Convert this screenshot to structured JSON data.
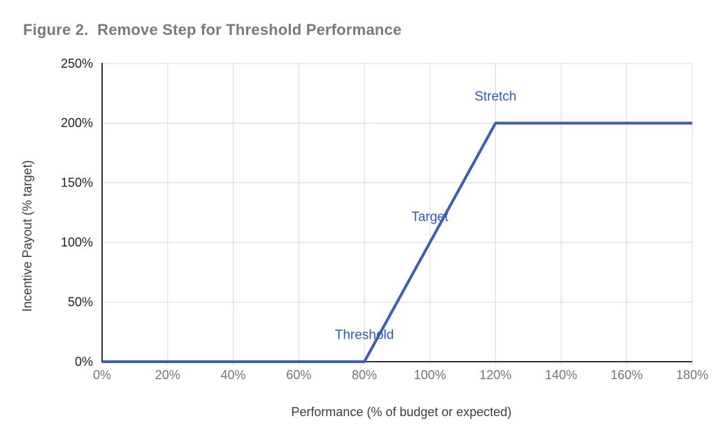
{
  "figure": {
    "title": "Figure 2.  Remove Step for Threshold Performance"
  },
  "chart_data": {
    "type": "line",
    "title": "Figure 2.  Remove Step for Threshold Performance",
    "xlabel": "Performance (% of budget or expected)",
    "ylabel": "Incentive Payout (% target)",
    "xlim": [
      0,
      180
    ],
    "ylim": [
      0,
      250
    ],
    "grid": true,
    "legend": "none",
    "x_ticks": [
      0,
      20,
      40,
      60,
      80,
      100,
      120,
      140,
      160,
      180
    ],
    "x_tick_labels": [
      "0%",
      "20%",
      "40%",
      "60%",
      "80%",
      "100%",
      "120%",
      "140%",
      "160%",
      "180%"
    ],
    "y_ticks": [
      0,
      50,
      100,
      150,
      200,
      250
    ],
    "y_tick_labels": [
      "0%",
      "50%",
      "100%",
      "150%",
      "200%",
      "250%"
    ],
    "series": [
      {
        "name": "incentive-payout-line",
        "color": "#3F5FAD",
        "points": [
          [
            0,
            0
          ],
          [
            80,
            0
          ],
          [
            120,
            200
          ],
          [
            180,
            200
          ]
        ]
      }
    ],
    "annotations": [
      {
        "label": "Threshold",
        "x": 80,
        "y": 22
      },
      {
        "label": "Target",
        "x": 100,
        "y": 121
      },
      {
        "label": "Stretch",
        "x": 120,
        "y": 222
      }
    ],
    "colors": {
      "line": "#3F5FAD",
      "annotation": "#2F5BB0",
      "grid": "#d8d8d8",
      "axis": "#333333",
      "x_tick_label": "#757575",
      "y_tick_label": "#1f1f1f",
      "axis_title": "#3c3c3c",
      "figure_title": "#7a7a7a",
      "background": "#ffffff"
    }
  }
}
